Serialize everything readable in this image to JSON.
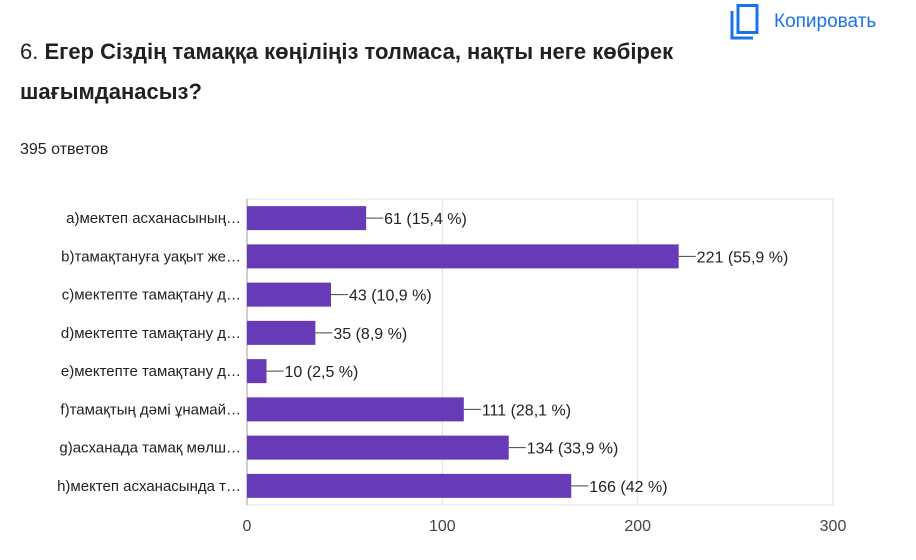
{
  "question": {
    "number": "6.",
    "text": "Егер Сіздің тамаққа көңіліңіз толмаса, нақты неге көбірек шағымданасыз?"
  },
  "copy_button": {
    "label": "Копировать",
    "icon": "copy-icon"
  },
  "responses_count": "395 ответов",
  "chart_data": {
    "type": "bar",
    "orientation": "horizontal",
    "categories": [
      "a)мектеп асханасының…",
      "b)тамақтануға уақыт же…",
      "c)мектепте тамақтану д…",
      "d)мектепте тамақтану д…",
      "e)мектепте тамақтану д…",
      "f)тамақтың дәмі ұнамай…",
      "g)асханада тамақ мөлш…",
      "h)мектеп асханасында т…"
    ],
    "values": [
      61,
      221,
      43,
      35,
      10,
      111,
      134,
      166
    ],
    "data_labels": [
      "61 (15,4 %)",
      "221 (55,9 %)",
      "43 (10,9 %)",
      "35 (8,9 %)",
      "10 (2,5 %)",
      "111 (28,1 %)",
      "134 (33,9 %)",
      "166 (42 %)"
    ],
    "xlim": [
      0,
      300
    ],
    "xticks": [
      0,
      100,
      200,
      300
    ],
    "grid": true,
    "bar_color": "#673ab7"
  }
}
